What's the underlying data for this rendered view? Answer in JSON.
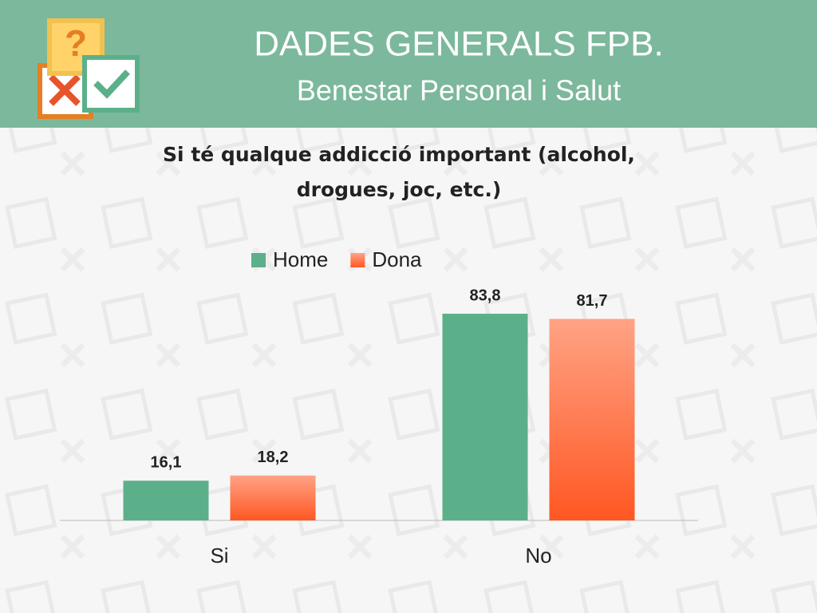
{
  "header": {
    "title": "DADES GENERALS FPB.",
    "subtitle": "Benestar Personal i Salut"
  },
  "chart_data": {
    "type": "bar",
    "title": "Si té qualque addicció important (alcohol, drogues, joc, etc.)",
    "categories": [
      "Si",
      "No"
    ],
    "series": [
      {
        "name": "Home",
        "color": "#5bb08a",
        "values": [
          16.1,
          83.8
        ],
        "value_labels": [
          "16,1",
          "83,8"
        ]
      },
      {
        "name": "Dona",
        "color": "#ff5722",
        "values": [
          18.2,
          81.7
        ],
        "value_labels": [
          "18,2",
          "81,7"
        ]
      }
    ],
    "ylim": [
      0,
      100
    ],
    "legend": "top"
  }
}
